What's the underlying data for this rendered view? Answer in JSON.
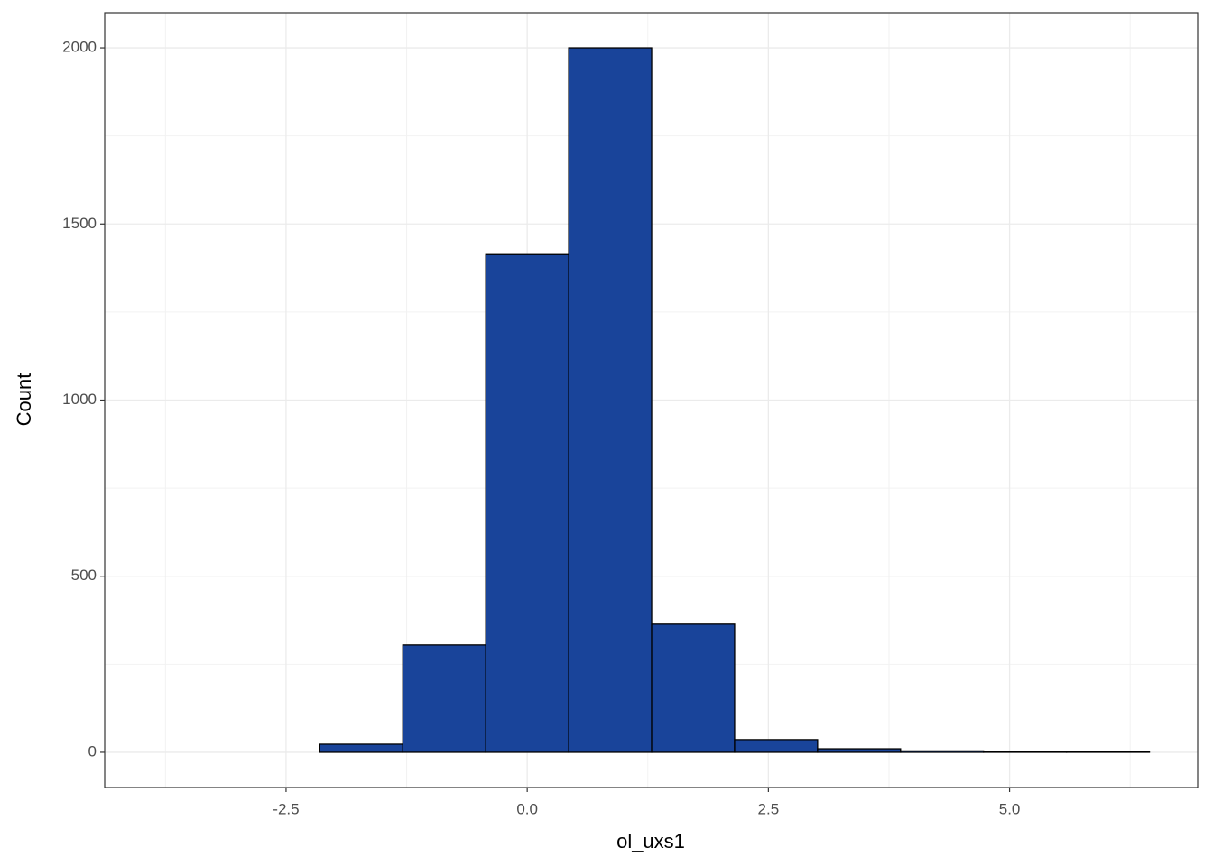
{
  "chart_data": {
    "type": "histogram",
    "x_label": "ol_uxs1",
    "y_label": "Count",
    "bins": [
      -3.87,
      -3.01,
      -2.15,
      -1.29,
      -0.43,
      0.43,
      1.29,
      2.15,
      3.01,
      3.87,
      4.73,
      5.59,
      6.45
    ],
    "counts": [
      0,
      0,
      23,
      305,
      1413,
      2000,
      364,
      36,
      10,
      4,
      1,
      1
    ],
    "color": "#19449a",
    "edge_color": "#000000",
    "xlim": [
      -4.38,
      6.95
    ],
    "ylim": [
      -100,
      2100
    ],
    "xticks": [
      {
        "value": -2.5,
        "label": "-2.5"
      },
      {
        "value": 0,
        "label": "0.0"
      },
      {
        "value": 2.5,
        "label": "2.5"
      },
      {
        "value": 5,
        "label": "5.0"
      }
    ],
    "yticks": [
      0,
      500,
      1000,
      1500,
      2000
    ],
    "x_minor_ticks": [
      -3.75,
      -1.25,
      1.25,
      3.75,
      6.25
    ],
    "y_minor_ticks": [
      250,
      750,
      1250,
      1750
    ],
    "grid": true
  }
}
